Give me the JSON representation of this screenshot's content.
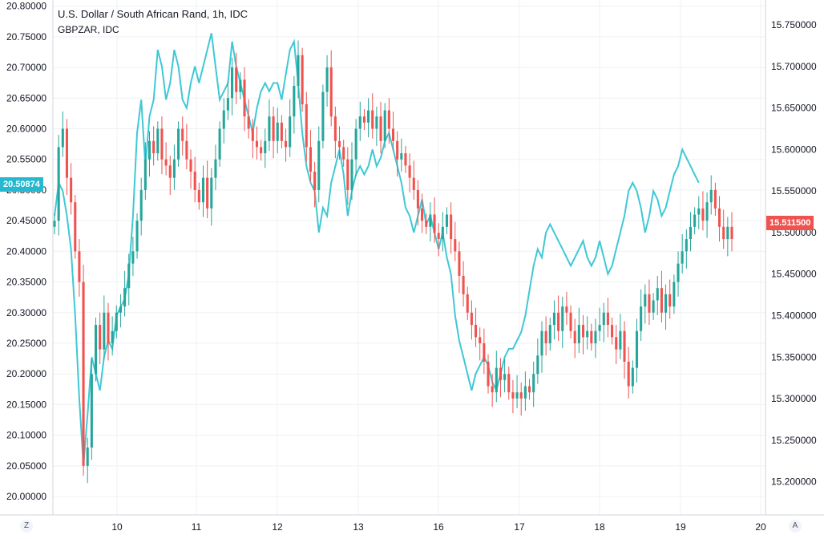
{
  "header": {
    "title": "U.S. Dollar / South African Rand, 1h, IDC",
    "compare_symbol": "GBPZAR, IDC"
  },
  "corner_buttons": {
    "timezone": "Z",
    "auto_scale": "A"
  },
  "colors": {
    "up": "#26a69a",
    "down": "#ef5350",
    "compare_line": "#3fc8d5",
    "grid": "#eef0f4",
    "left_tag": "#26b8cf",
    "right_tag": "#ef5350"
  },
  "price_tags": {
    "left": "20.50874",
    "right": "15.511500"
  },
  "chart_data": {
    "type": "candlestick",
    "x_tick_labels": [
      "10",
      "11",
      "12",
      "13",
      "16",
      "17",
      "18",
      "19",
      "20"
    ],
    "left_axis": {
      "ylim": [
        19.97,
        20.81
      ],
      "ticks": [
        "20.00000",
        "20.05000",
        "20.10000",
        "20.15000",
        "20.20000",
        "20.25000",
        "20.30000",
        "20.35000",
        "20.40000",
        "20.45000",
        "20.50000",
        "20.55000",
        "20.60000",
        "20.65000",
        "20.70000",
        "20.75000",
        "20.80000"
      ]
    },
    "right_axis": {
      "ylim": [
        15.16,
        15.78
      ],
      "ticks": [
        "15.200000",
        "15.250000",
        "15.300000",
        "15.350000",
        "15.400000",
        "15.450000",
        "15.500000",
        "15.550000",
        "15.600000",
        "15.650000",
        "15.700000",
        "15.750000"
      ]
    },
    "series": [
      {
        "name": "U.S. Dollar / South African Rand",
        "axis": "left",
        "close_path": [
          20.45,
          20.57,
          20.6,
          20.52,
          20.48,
          20.4,
          20.35,
          20.05,
          20.08,
          20.2,
          20.28,
          20.24,
          20.3,
          20.25,
          20.27,
          20.3,
          20.31,
          20.34,
          20.38,
          20.4,
          20.45,
          20.5,
          20.55,
          20.58,
          20.56,
          20.6,
          20.55,
          20.54,
          20.52,
          20.55,
          20.6,
          20.58,
          20.55,
          20.53,
          20.5,
          20.48,
          20.52,
          20.47,
          20.52,
          20.55,
          20.6,
          20.63,
          20.65,
          20.7,
          20.66,
          20.68,
          20.62,
          20.6,
          20.58,
          20.57,
          20.56,
          20.58,
          20.62,
          20.58,
          20.61,
          20.58,
          20.57,
          20.62,
          20.67,
          20.72,
          20.64,
          20.57,
          20.53,
          20.5,
          20.58,
          20.66,
          20.7,
          20.62,
          20.58,
          20.57,
          20.55,
          20.5,
          20.55,
          20.6,
          20.62,
          20.61,
          20.63,
          20.6,
          20.62,
          20.58,
          20.63,
          20.6,
          20.58,
          20.55,
          20.56,
          20.54,
          20.52,
          20.5,
          20.47,
          20.45,
          20.44,
          20.46,
          20.43,
          20.42,
          20.44,
          20.46,
          20.42,
          20.4,
          20.36,
          20.33,
          20.3,
          20.28,
          20.26,
          20.25,
          20.22,
          20.18,
          20.17,
          20.21,
          20.19,
          20.2,
          20.17,
          20.16,
          20.17,
          20.16,
          20.18,
          20.17,
          20.2,
          20.23,
          20.27,
          20.25,
          20.28,
          20.3,
          20.27,
          20.31,
          20.3,
          20.27,
          20.25,
          20.28,
          20.26,
          20.27,
          20.25,
          20.27,
          20.28,
          20.3,
          20.28,
          20.26,
          20.24,
          20.27,
          20.22,
          20.18,
          20.21,
          20.27,
          20.31,
          20.33,
          20.3,
          20.32,
          20.34,
          20.3,
          20.33,
          20.31,
          20.35,
          20.38,
          20.4,
          20.42,
          20.44,
          20.46,
          20.47,
          20.45,
          20.48,
          20.5,
          20.47,
          20.44,
          20.42,
          20.44,
          20.42
        ]
      },
      {
        "name": "GBPZAR, IDC",
        "axis": "right",
        "close_path": [
          15.52,
          15.56,
          15.55,
          15.52,
          15.48,
          15.4,
          15.3,
          15.22,
          15.28,
          15.35,
          15.33,
          15.31,
          15.35,
          15.37,
          15.36,
          15.4,
          15.41,
          15.42,
          15.45,
          15.52,
          15.62,
          15.66,
          15.58,
          15.64,
          15.66,
          15.72,
          15.7,
          15.66,
          15.68,
          15.72,
          15.7,
          15.66,
          15.65,
          15.68,
          15.7,
          15.68,
          15.7,
          15.72,
          15.74,
          15.7,
          15.66,
          15.67,
          15.68,
          15.73,
          15.7,
          15.68,
          15.66,
          15.64,
          15.62,
          15.65,
          15.67,
          15.68,
          15.67,
          15.68,
          15.68,
          15.66,
          15.69,
          15.72,
          15.73,
          15.68,
          15.62,
          15.58,
          15.56,
          15.55,
          15.5,
          15.53,
          15.52,
          15.56,
          15.58,
          15.6,
          15.57,
          15.52,
          15.55,
          15.57,
          15.58,
          15.57,
          15.58,
          15.6,
          15.58,
          15.59,
          15.61,
          15.62,
          15.6,
          15.58,
          15.56,
          15.53,
          15.52,
          15.5,
          15.52,
          15.54,
          15.51,
          15.52,
          15.5,
          15.48,
          15.5,
          15.47,
          15.45,
          15.4,
          15.37,
          15.35,
          15.33,
          15.31,
          15.33,
          15.34,
          15.35,
          15.34,
          15.32,
          15.31,
          15.33,
          15.35,
          15.36,
          15.36,
          15.37,
          15.38,
          15.4,
          15.43,
          15.46,
          15.48,
          15.47,
          15.5,
          15.51,
          15.5,
          15.49,
          15.48,
          15.47,
          15.46,
          15.47,
          15.48,
          15.49,
          15.47,
          15.46,
          15.47,
          15.49,
          15.47,
          15.45,
          15.46,
          15.48,
          15.5,
          15.52,
          15.55,
          15.56,
          15.55,
          15.53,
          15.5,
          15.52,
          15.55,
          15.54,
          15.52,
          15.53,
          15.55,
          15.57,
          15.58,
          15.6,
          15.59,
          15.58,
          15.57,
          15.56
        ]
      }
    ]
  }
}
